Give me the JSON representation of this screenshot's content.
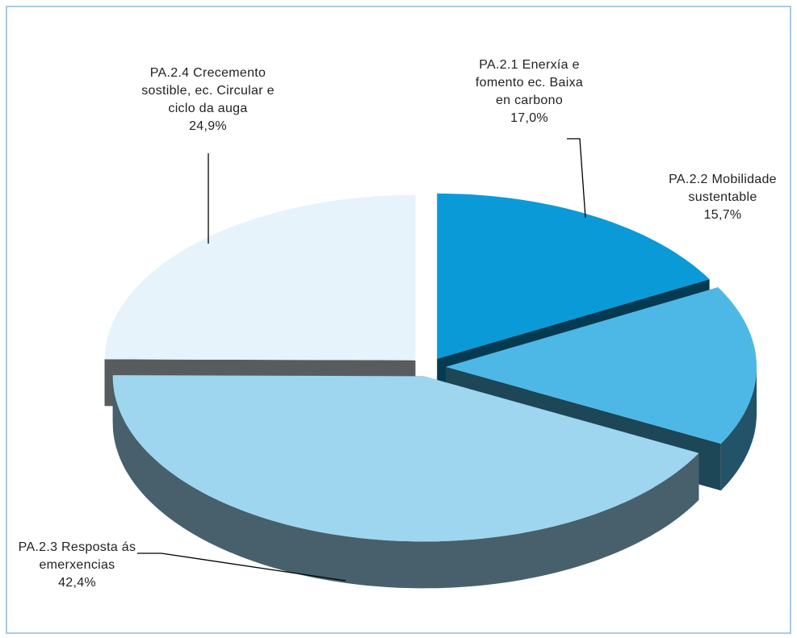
{
  "chart_data": {
    "type": "pie",
    "categories": [
      "PA.2.1 Enerxía e fomento ec. Baixa en carbono",
      "PA.2.2 Mobilidade sustentable",
      "PA.2.3 Resposta ás emerxencias",
      "PA.2.4 Crecemento sostible, ec. Circular e ciclo da auga"
    ],
    "values": [
      17.0,
      15.7,
      42.4,
      24.9
    ],
    "value_labels": [
      "17,0%",
      "15,7%",
      "42,4%",
      "24,9%"
    ],
    "colors": [
      "#0a9ad8",
      "#4db8e6",
      "#9ed6f0",
      "#e6f3fa"
    ]
  }
}
